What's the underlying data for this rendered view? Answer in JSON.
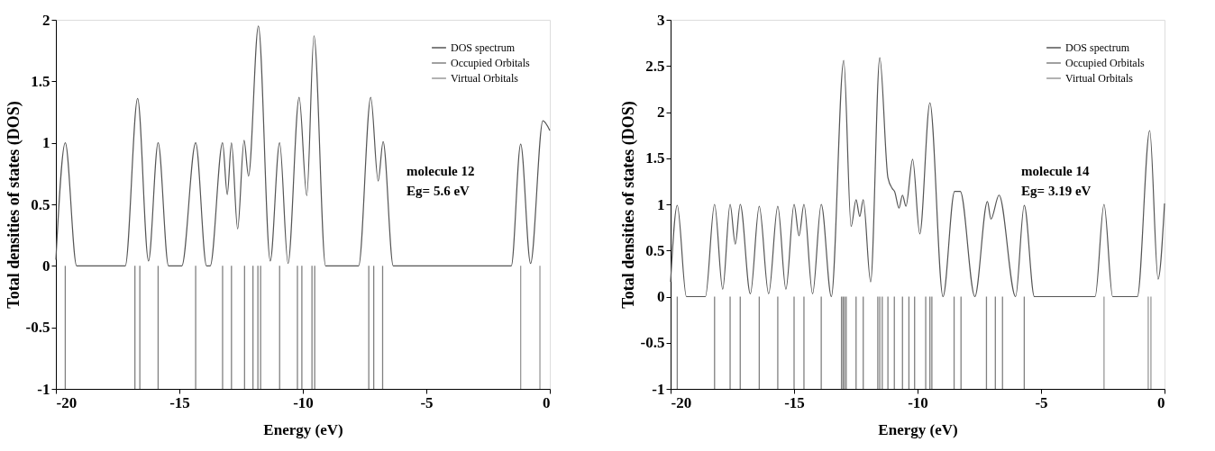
{
  "chart_data": [
    {
      "type": "line",
      "xlabel": "Energy (eV)",
      "ylabel": "Total densities of states (DOS)",
      "xlim": [
        -20,
        0
      ],
      "xticks": [
        -20,
        -15,
        -10,
        -5,
        0
      ],
      "ylim": [
        -1,
        2
      ],
      "yticks": [
        -1,
        -0.5,
        0,
        0.5,
        1,
        1.5,
        2
      ],
      "legend": "top right",
      "annotations": [
        "molecule 12",
        "Eg= 5.6 eV"
      ],
      "series": [
        {
          "name": "DOS spectrum",
          "color": "#555555",
          "x": [
            -20,
            -19.62,
            -19.16,
            -17.19,
            -16.69,
            -16.25,
            -15.86,
            -15.44,
            -14.9,
            -14.34,
            -13.9,
            -13.75,
            -13.25,
            -13.06,
            -12.89,
            -12.64,
            -12.38,
            -12.2,
            -11.8,
            -11.32,
            -10.94,
            -10.6,
            -10.15,
            -9.84,
            -9.55,
            -9.08,
            -7.74,
            -7.25,
            -6.95,
            -6.75,
            -6.34,
            -1.56,
            -1.18,
            -0.78,
            -0.28,
            0
          ],
          "values": [
            0.05,
            1.0,
            0,
            0,
            1.36,
            0.04,
            1.0,
            0,
            0,
            1.0,
            0,
            0,
            1.0,
            0.58,
            1.0,
            0.3,
            1.02,
            0.73,
            1.95,
            0.04,
            1.0,
            0.02,
            1.37,
            0.57,
            1.87,
            0,
            0,
            1.37,
            0.69,
            1.01,
            0,
            0,
            0.99,
            0.02,
            1.18,
            1.1
          ]
        },
        {
          "name": "Occupied Orbitals",
          "type": "bar",
          "color": "#808080",
          "x": [
            -19.62,
            -16.8,
            -16.6,
            -15.86,
            -14.34,
            -13.25,
            -12.89,
            -12.36,
            -12.02,
            -11.82,
            -11.71,
            -10.94,
            -10.22,
            -10.04,
            -9.63,
            -9.52,
            -7.33,
            -7.13,
            -6.77
          ],
          "values": [
            -1,
            -1,
            -1,
            -1,
            -1,
            -1,
            -1,
            -1,
            -1,
            -1,
            -1,
            -1,
            -1,
            -1,
            -1,
            -1,
            -1,
            -1,
            -1
          ]
        },
        {
          "name": "Virtual Orbitals",
          "type": "bar",
          "color": "#999999",
          "x": [
            -1.18,
            -0.4
          ],
          "values": [
            -1,
            -1
          ]
        }
      ]
    },
    {
      "type": "line",
      "xlabel": "Energy (eV)",
      "ylabel": "Total densities of states (DOS)",
      "xlim": [
        -20,
        0
      ],
      "xticks": [
        -20,
        -15,
        -10,
        -5,
        0
      ],
      "ylim": [
        -1,
        3
      ],
      "yticks": [
        -1,
        -0.5,
        0,
        0.5,
        1,
        1.5,
        2,
        2.5,
        3
      ],
      "legend": "top right",
      "annotations": [
        "molecule 14",
        "Eg= 3.19 eV"
      ],
      "series": [
        {
          "name": "DOS spectrum",
          "color": "#555555",
          "x": [
            -20,
            -19.73,
            -19.36,
            -18.59,
            -18.22,
            -17.89,
            -17.59,
            -17.38,
            -17.18,
            -16.77,
            -16.41,
            -16.03,
            -15.66,
            -15.33,
            -15.0,
            -14.8,
            -14.6,
            -14.25,
            -13.9,
            -13.49,
            -12.99,
            -12.69,
            -12.49,
            -12.34,
            -12.2,
            -11.9,
            -11.53,
            -11.2,
            -11.02,
            -10.93,
            -10.75,
            -10.61,
            -10.47,
            -10.2,
            -9.91,
            -9.5,
            -8.97,
            -8.5,
            -8.27,
            -7.68,
            -7.17,
            -7.03,
            -6.7,
            -6.03,
            -5.68,
            -5.27,
            -2.81,
            -2.45,
            -2.1,
            -1.1,
            -0.6,
            -0.26,
            0
          ],
          "values": [
            0.16,
            0.99,
            0,
            0,
            1.0,
            0.08,
            1.0,
            0.57,
            1.0,
            0.03,
            0.98,
            0.03,
            0.98,
            0.08,
            1.0,
            0.66,
            1.0,
            0.03,
            1.0,
            0,
            2.56,
            0.76,
            1.05,
            0.87,
            1.05,
            0.16,
            2.59,
            1.29,
            1.17,
            1.14,
            0.96,
            1.1,
            0.98,
            1.49,
            0.68,
            2.1,
            0,
            1.14,
            1.14,
            0,
            1.03,
            0.84,
            1.1,
            0,
            0.99,
            0,
            0,
            1.0,
            0,
            0,
            1.8,
            0.19,
            1.01
          ]
        },
        {
          "name": "Occupied Orbitals",
          "type": "bar",
          "color": "#808080",
          "x": [
            -19.73,
            -18.22,
            -17.59,
            -17.18,
            -16.41,
            -15.66,
            -15.0,
            -14.6,
            -13.9,
            -13.08,
            -13.02,
            -12.96,
            -12.89,
            -12.49,
            -12.2,
            -11.61,
            -11.53,
            -11.43,
            -11.2,
            -10.94,
            -10.61,
            -10.35,
            -10.12,
            -9.67,
            -9.5,
            -9.42,
            -8.52,
            -8.24,
            -7.21,
            -6.85,
            -6.56,
            -5.68
          ],
          "values": [
            -1,
            -1,
            -1,
            -1,
            -1,
            -1,
            -1,
            -1,
            -1,
            -1,
            -1,
            -1,
            -1,
            -1,
            -1,
            -1,
            -1,
            -1,
            -1,
            -1,
            -1,
            -1,
            -1,
            -1,
            -1,
            -1,
            -1,
            -1,
            -1,
            -1,
            -1,
            -1
          ]
        },
        {
          "name": "Virtual Orbitals",
          "type": "bar",
          "color": "#999999",
          "x": [
            -2.45,
            -0.66,
            -0.55
          ],
          "values": [
            -1,
            -1,
            -1
          ]
        }
      ]
    }
  ]
}
